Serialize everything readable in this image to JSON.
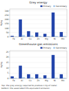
{
  "chart_data": [
    {
      "type": "bar",
      "title": "Grey energy",
      "y_label": "MJ/kg",
      "categories": [
        "Fe",
        "Al",
        "Cu",
        "Zn",
        "Mg",
        "Ni",
        "Mo"
      ],
      "series": [
        {
          "name": "Primary",
          "color": "#2244aa",
          "values": [
            11,
            200,
            65,
            50,
            35,
            280,
            55
          ]
        },
        {
          "name": "Secondary",
          "color": "#aaccee",
          "values": [
            3,
            20,
            15,
            10,
            5,
            10,
            10
          ]
        }
      ],
      "ylim": [
        0,
        320
      ],
      "yticks": [
        0,
        50,
        100,
        150,
        200,
        250,
        300
      ],
      "grid": true,
      "legend": "upper right"
    },
    {
      "type": "bar",
      "title": "Greenhouse gas emissions",
      "y_label": "kg/kg",
      "categories": [
        "Fe",
        "Al",
        "Cu",
        "Zn",
        "Mg",
        "Ni",
        "Mo"
      ],
      "series": [
        {
          "name": "Primary",
          "color": "#2244aa",
          "values": [
            2,
            12,
            4,
            4,
            3,
            22,
            4
          ]
        },
        {
          "name": "Secondary",
          "color": "#aaccee",
          "values": [
            0.5,
            1.2,
            1.0,
            0.8,
            0.4,
            0.7,
            0.7
          ]
        }
      ],
      "ylim": [
        0,
        26
      ],
      "yticks": [
        0,
        5,
        10,
        15,
        20,
        25
      ],
      "grid": true,
      "legend": "upper right",
      "annotations": [
        "Top: the grey energy required to produce 1 kg of metal,",
        "bottom: the associated CO₂ equivalent emission"
      ]
    }
  ]
}
